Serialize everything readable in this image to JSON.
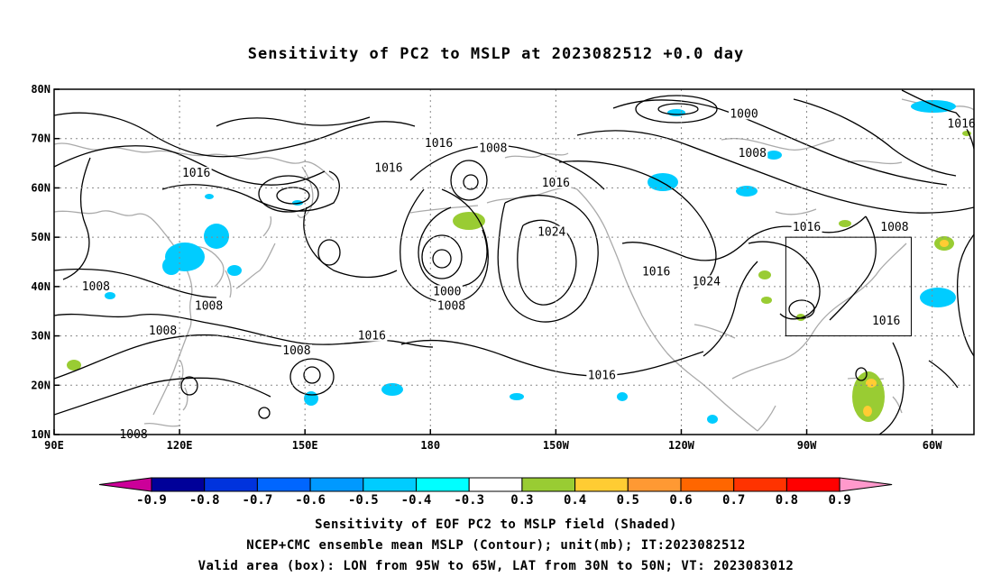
{
  "title": "Sensitivity of PC2 to MSLP at 2023082512 +0.0 day",
  "map": {
    "lon_ticks": [
      "90E",
      "120E",
      "150E",
      "180",
      "150W",
      "120W",
      "90W",
      "60W"
    ],
    "lat_ticks": [
      "80N",
      "70N",
      "60N",
      "50N",
      "40N",
      "30N",
      "20N",
      "10N"
    ],
    "lon_range": [
      90,
      310
    ],
    "lat_range": [
      10,
      80
    ],
    "valid_box": {
      "lon": [
        265,
        295
      ],
      "lat": [
        30,
        50
      ]
    },
    "contour_labels": [
      {
        "text": "1016",
        "lon": 124,
        "lat": 63
      },
      {
        "text": "1016",
        "lon": 170,
        "lat": 64
      },
      {
        "text": "1016",
        "lon": 182,
        "lat": 69
      },
      {
        "text": "1008",
        "lon": 195,
        "lat": 68
      },
      {
        "text": "1016",
        "lon": 210,
        "lat": 61
      },
      {
        "text": "1024",
        "lon": 209,
        "lat": 51
      },
      {
        "text": "1000",
        "lon": 255,
        "lat": 75
      },
      {
        "text": "1008",
        "lon": 257,
        "lat": 67
      },
      {
        "text": "1016",
        "lon": 307,
        "lat": 73
      },
      {
        "text": "1008",
        "lon": 291,
        "lat": 52
      },
      {
        "text": "1016",
        "lon": 270,
        "lat": 52
      },
      {
        "text": "1016",
        "lon": 234,
        "lat": 43
      },
      {
        "text": "1024",
        "lon": 246,
        "lat": 41
      },
      {
        "text": "1008",
        "lon": 100,
        "lat": 40
      },
      {
        "text": "1008",
        "lon": 127,
        "lat": 36
      },
      {
        "text": "1008",
        "lon": 116,
        "lat": 31
      },
      {
        "text": "1000",
        "lon": 184,
        "lat": 39
      },
      {
        "text": "1008",
        "lon": 185,
        "lat": 36
      },
      {
        "text": "1016",
        "lon": 166,
        "lat": 30
      },
      {
        "text": "1008",
        "lon": 148,
        "lat": 27
      },
      {
        "text": "1016",
        "lon": 289,
        "lat": 33
      },
      {
        "text": "1016",
        "lon": 221,
        "lat": 22
      },
      {
        "text": "1008",
        "lon": 109,
        "lat": 10
      }
    ]
  },
  "colorbar": {
    "ticks": [
      "-0.9",
      "-0.8",
      "-0.7",
      "-0.6",
      "-0.5",
      "-0.4",
      "-0.3",
      "0.3",
      "0.4",
      "0.5",
      "0.6",
      "0.7",
      "0.8",
      "0.9"
    ],
    "colors": [
      "#000099",
      "#0033dd",
      "#0066ff",
      "#0099ff",
      "#00ccff",
      "#00ffff",
      "#ffffff",
      "#99cc33",
      "#ffcc33",
      "#ff9933",
      "#ff6600",
      "#ff3300",
      "#ff0000"
    ],
    "low_end_color": "#cc0099",
    "high_end_color": "#ff99cc"
  },
  "captions": {
    "line1": "Sensitivity of EOF PC2 to MSLP field (Shaded)",
    "line2": "NCEP+CMC ensemble mean MSLP (Contour); unit(mb); IT:2023082512",
    "line3": "Valid area (box): LON from 95W to 65W, LAT from 30N to 50N; VT: 2023083012"
  },
  "colors": {
    "contour": "#000000",
    "coastline": "#aaaaaa",
    "grid": "#888888",
    "positive_shade": "#99cc33",
    "negative_shade": "#00ccff"
  }
}
